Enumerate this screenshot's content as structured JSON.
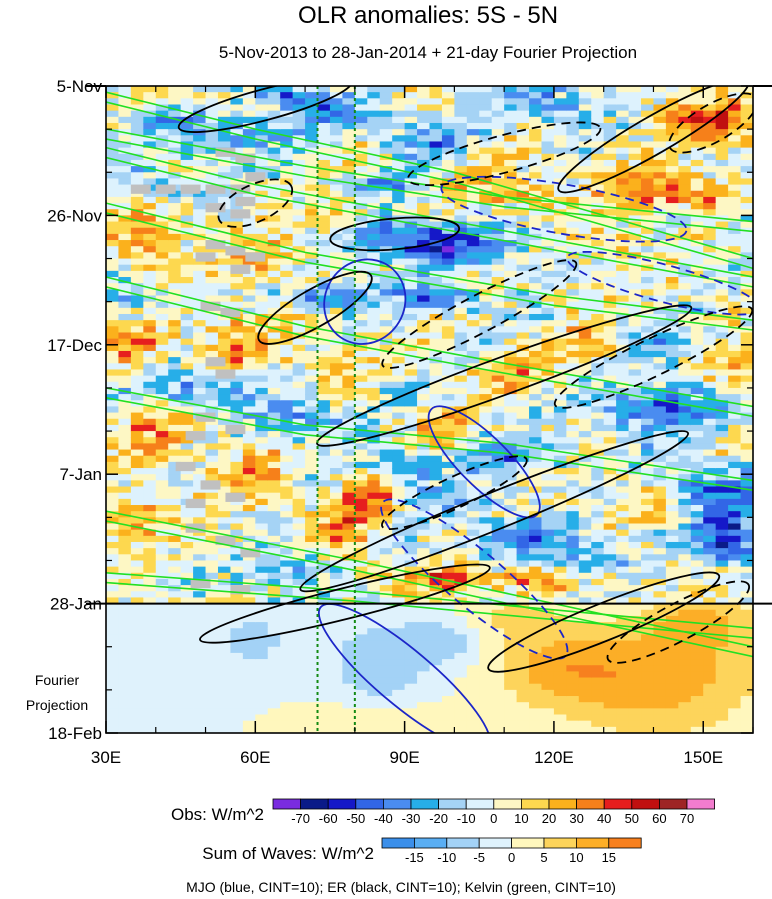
{
  "chart_data": {
    "type": "heatmap",
    "title": "OLR anomalies: 5S - 5N",
    "subtitle": "5-Nov-2013 to 28-Jan-2014 + 21-day Fourier Projection",
    "x_axis": {
      "unit": "longitude (E)",
      "range": [
        30,
        160
      ],
      "ticks": [
        30,
        60,
        90,
        120,
        150
      ],
      "tick_labels": [
        "30E",
        "60E",
        "90E",
        "120E",
        "150E"
      ]
    },
    "y_axis": {
      "unit": "date (time increases downward)",
      "range_days": [
        0,
        105
      ],
      "ticks_days": [
        0,
        21,
        42,
        63,
        84,
        105
      ],
      "tick_labels": [
        "5-Nov",
        "26-Nov",
        "17-Dec",
        "7-Jan",
        "28-Jan",
        "18-Feb"
      ]
    },
    "observation_end_day": 84,
    "projection_label": [
      "Fourier",
      "Projection"
    ],
    "reference_longitudes": [
      72.5,
      80
    ],
    "obs_colorbar": {
      "label": "Obs: W/m^2",
      "levels": [
        -70,
        -60,
        -50,
        -40,
        -30,
        -20,
        -10,
        0,
        10,
        20,
        30,
        40,
        50,
        60,
        70
      ],
      "colors": [
        "#7a2ce0",
        "#0a1a88",
        "#1518c8",
        "#3266e6",
        "#4a8cf0",
        "#27aee8",
        "#a5d3f5",
        "#ddf2fd",
        "#fdf7c4",
        "#fdd84f",
        "#fbb11c",
        "#f6801a",
        "#e61e1e",
        "#c01010",
        "#9e2424",
        "#f27cce"
      ]
    },
    "wave_colorbar": {
      "label": "Sum of Waves: W/m^2",
      "levels": [
        -15,
        -10,
        -5,
        0,
        5,
        10,
        15
      ],
      "colors": [
        "#3b8fea",
        "#5aaef3",
        "#a3d2f6",
        "#dff2fc",
        "#fff7bd",
        "#fdd45b",
        "#fcae27",
        "#f7801f"
      ]
    },
    "contour_legend": "MJO (blue, CINT=10); ER (black, CINT=10); Kelvin (green, CINT=10)",
    "wave_colors": {
      "MJO": "#1c26c8",
      "ER": "#000000",
      "Kelvin": "#22e022"
    },
    "obs_blobs": [
      {
        "lon": 100,
        "day": 26,
        "v": -45,
        "rl": 14,
        "rd": 3
      },
      {
        "lon": 86,
        "day": 24,
        "v": -40,
        "rl": 10,
        "rd": 3
      },
      {
        "lon": 96,
        "day": 34,
        "v": -45,
        "rl": 9,
        "rd": 2
      },
      {
        "lon": 75,
        "day": 34,
        "v": -40,
        "rl": 7,
        "rd": 2
      },
      {
        "lon": 86,
        "day": 16,
        "v": -30,
        "rl": 8,
        "rd": 2
      },
      {
        "lon": 40,
        "day": 16,
        "v": -20,
        "rl": 10,
        "rd": 3
      },
      {
        "lon": 55,
        "day": 8,
        "v": -30,
        "rl": 12,
        "rd": 3
      },
      {
        "lon": 75,
        "day": 4,
        "v": -30,
        "rl": 12,
        "rd": 3
      },
      {
        "lon": 95,
        "day": 9,
        "v": -30,
        "rl": 8,
        "rd": 3
      },
      {
        "lon": 118,
        "day": 3,
        "v": -30,
        "rl": 10,
        "rd": 3
      },
      {
        "lon": 65,
        "day": 1,
        "v": -40,
        "rl": 5,
        "rd": 1.5
      },
      {
        "lon": 42,
        "day": 6,
        "v": -20,
        "rl": 8,
        "rd": 2
      },
      {
        "lon": 48,
        "day": 49,
        "v": -30,
        "rl": 14,
        "rd": 3
      },
      {
        "lon": 70,
        "day": 54,
        "v": -30,
        "rl": 10,
        "rd": 3
      },
      {
        "lon": 88,
        "day": 62,
        "v": -30,
        "rl": 9,
        "rd": 3
      },
      {
        "lon": 112,
        "day": 60,
        "v": -35,
        "rl": 9,
        "rd": 3
      },
      {
        "lon": 112,
        "day": 73,
        "v": -25,
        "rl": 10,
        "rd": 3
      },
      {
        "lon": 140,
        "day": 52,
        "v": -40,
        "rl": 14,
        "rd": 4
      },
      {
        "lon": 152,
        "day": 66,
        "v": -45,
        "rl": 10,
        "rd": 4
      },
      {
        "lon": 155,
        "day": 74,
        "v": -55,
        "rl": 7,
        "rd": 4
      },
      {
        "lon": 140,
        "day": 42,
        "v": -30,
        "rl": 10,
        "rd": 3
      },
      {
        "lon": 125,
        "day": 76,
        "v": -30,
        "rl": 9,
        "rd": 3
      },
      {
        "lon": 66,
        "day": 78,
        "v": -25,
        "rl": 10,
        "rd": 3
      },
      {
        "lon": 100,
        "day": 67,
        "v": -20,
        "rl": 9,
        "rd": 3
      },
      {
        "lon": 130,
        "day": 88,
        "v": -35,
        "rl": 10,
        "rd": 2
      },
      {
        "lon": 155,
        "day": 20,
        "v": -20,
        "rl": 8,
        "rd": 4
      },
      {
        "lon": 36,
        "day": 36,
        "v": -15,
        "rl": 7,
        "rd": 3
      },
      {
        "lon": 88,
        "day": 50,
        "v": -15,
        "rl": 6,
        "rd": 3
      },
      {
        "lon": 152,
        "day": 6,
        "v": 40,
        "rl": 9,
        "rd": 4
      },
      {
        "lon": 140,
        "day": 17,
        "v": 40,
        "rl": 10,
        "rd": 3
      },
      {
        "lon": 152,
        "day": 19,
        "v": 30,
        "rl": 6,
        "rd": 3
      },
      {
        "lon": 100,
        "day": 80,
        "v": 45,
        "rl": 9,
        "rd": 2
      },
      {
        "lon": 116,
        "day": 80,
        "v": 30,
        "rl": 6,
        "rd": 2
      },
      {
        "lon": 38,
        "day": 25,
        "v": 30,
        "rl": 8,
        "rd": 5
      },
      {
        "lon": 36,
        "day": 42,
        "v": 30,
        "rl": 7,
        "rd": 4
      },
      {
        "lon": 56,
        "day": 42,
        "v": 25,
        "rl": 8,
        "rd": 5
      },
      {
        "lon": 40,
        "day": 57,
        "v": 25,
        "rl": 8,
        "rd": 5
      },
      {
        "lon": 36,
        "day": 70,
        "v": 25,
        "rl": 7,
        "rd": 4
      },
      {
        "lon": 60,
        "day": 64,
        "v": 30,
        "rl": 7,
        "rd": 4
      },
      {
        "lon": 84,
        "day": 66,
        "v": 40,
        "rl": 5,
        "rd": 4
      },
      {
        "lon": 78,
        "day": 72,
        "v": 30,
        "rl": 6,
        "rd": 6
      },
      {
        "lon": 62,
        "day": 28,
        "v": 25,
        "rl": 7,
        "rd": 4
      },
      {
        "lon": 77,
        "day": 23,
        "v": 30,
        "rl": 5,
        "rd": 4
      },
      {
        "lon": 110,
        "day": 17,
        "v": 25,
        "rl": 9,
        "rd": 3
      },
      {
        "lon": 112,
        "day": 47,
        "v": 25,
        "rl": 7,
        "rd": 3
      },
      {
        "lon": 128,
        "day": 42,
        "v": 30,
        "rl": 9,
        "rd": 3
      },
      {
        "lon": 155,
        "day": 46,
        "v": 25,
        "rl": 6,
        "rd": 3
      },
      {
        "lon": 130,
        "day": 26,
        "v": 20,
        "rl": 7,
        "rd": 3
      },
      {
        "lon": 143,
        "day": 68,
        "v": 20,
        "rl": 7,
        "rd": 3
      },
      {
        "lon": 97,
        "day": 55,
        "v": 20,
        "rl": 6,
        "rd": 3
      },
      {
        "lon": 75,
        "day": 46,
        "v": 20,
        "rl": 6,
        "rd": 4
      }
    ],
    "proj_blobs": [
      {
        "lon": 140,
        "day": 96,
        "v": 14,
        "rl": 20,
        "rd": 9
      },
      {
        "lon": 120,
        "day": 94,
        "v": 9,
        "rl": 12,
        "rd": 6
      },
      {
        "lon": 85,
        "day": 103,
        "v": 7,
        "rl": 12,
        "rd": 5
      },
      {
        "lon": 150,
        "day": 87,
        "v": 10,
        "rl": 10,
        "rd": 4
      },
      {
        "lon": 110,
        "day": 86,
        "v": 6,
        "rl": 10,
        "rd": 3
      },
      {
        "lon": 85,
        "day": 95,
        "v": -10,
        "rl": 10,
        "rd": 8
      },
      {
        "lon": 98,
        "day": 90,
        "v": -8,
        "rl": 8,
        "rd": 4
      },
      {
        "lon": 60,
        "day": 90,
        "v": -6,
        "rl": 10,
        "rd": 6
      },
      {
        "lon": 40,
        "day": 92,
        "v": -4,
        "rl": 10,
        "rd": 8
      }
    ],
    "missing_cells": [
      [
        35,
        16
      ],
      [
        40,
        16
      ],
      [
        45,
        16
      ],
      [
        50,
        16
      ],
      [
        55,
        16
      ],
      [
        52,
        10
      ],
      [
        56,
        11
      ],
      [
        58,
        14
      ],
      [
        56,
        18
      ],
      [
        50,
        19
      ],
      [
        55,
        20
      ],
      [
        50,
        25
      ],
      [
        54,
        26
      ],
      [
        48,
        27
      ],
      [
        58,
        27
      ],
      [
        55,
        29
      ],
      [
        49,
        35
      ],
      [
        53,
        36
      ],
      [
        50,
        44
      ],
      [
        52,
        46
      ],
      [
        48,
        53
      ],
      [
        54,
        55
      ],
      [
        46,
        56
      ],
      [
        44,
        61
      ],
      [
        49,
        64
      ],
      [
        46,
        67
      ],
      [
        54,
        66
      ],
      [
        46,
        71
      ],
      [
        52,
        73
      ],
      [
        57,
        75
      ],
      [
        47,
        80
      ],
      [
        55,
        81
      ]
    ],
    "kelvin_lines": [
      [
        [
          30,
          1
        ],
        [
          60,
          7
        ],
        [
          100,
          14
        ],
        [
          160,
          28
        ]
      ],
      [
        [
          30,
          7
        ],
        [
          70,
          13
        ],
        [
          110,
          18
        ],
        [
          160,
          22
        ]
      ],
      [
        [
          30,
          10
        ],
        [
          60,
          16
        ],
        [
          100,
          22
        ],
        [
          160,
          31
        ]
      ],
      [
        [
          30,
          19
        ],
        [
          70,
          27
        ],
        [
          120,
          34
        ],
        [
          160,
          38
        ]
      ],
      [
        [
          30,
          31
        ],
        [
          70,
          39
        ],
        [
          110,
          45
        ],
        [
          160,
          52
        ]
      ],
      [
        [
          30,
          49
        ],
        [
          70,
          55
        ],
        [
          110,
          58
        ],
        [
          160,
          64
        ]
      ],
      [
        [
          30,
          69
        ],
        [
          80,
          77
        ],
        [
          120,
          84
        ],
        [
          160,
          91
        ]
      ],
      [
        [
          30,
          79
        ],
        [
          80,
          82
        ],
        [
          120,
          85
        ],
        [
          160,
          88
        ]
      ]
    ],
    "mjo_contours": [
      {
        "lon": 82,
        "day": 35,
        "rl": 8,
        "rd": 7,
        "rot": 30,
        "dash": false
      },
      {
        "lon": 106,
        "day": 61,
        "rl": 15,
        "rd": 4,
        "rot": 45,
        "dash": false
      },
      {
        "lon": 90,
        "day": 96,
        "rl": 22,
        "rd": 4.5,
        "rot": 40,
        "dash": false
      },
      {
        "lon": 122,
        "day": 20,
        "rl": 25,
        "rd": 4,
        "rot": 10,
        "dash": true
      },
      {
        "lon": 104,
        "day": 80,
        "rl": 24,
        "rd": 4.5,
        "rot": 40,
        "dash": true
      },
      {
        "lon": 142,
        "day": 32,
        "rl": 20,
        "rd": 3,
        "rot": 15,
        "dash": true
      }
    ],
    "er_contours": [
      {
        "lon": 62,
        "day": 3,
        "rl": 18,
        "rd": 2.5,
        "rot": -15,
        "dash": false
      },
      {
        "lon": 88,
        "day": 24,
        "rl": 13,
        "rd": 2.5,
        "rot": -5,
        "dash": false
      },
      {
        "lon": 72,
        "day": 36,
        "rl": 13,
        "rd": 3,
        "rot": -30,
        "dash": false
      },
      {
        "lon": 110,
        "day": 47,
        "rl": 40,
        "rd": 3,
        "rot": -20,
        "dash": false
      },
      {
        "lon": 108,
        "day": 69,
        "rl": 42,
        "rd": 3,
        "rot": -22,
        "dash": false
      },
      {
        "lon": 78,
        "day": 84,
        "rl": 30,
        "rd": 2.5,
        "rot": -14,
        "dash": false
      },
      {
        "lon": 140,
        "day": 8,
        "rl": 22,
        "rd": 3,
        "rot": -30,
        "dash": false
      },
      {
        "lon": 130,
        "day": 87,
        "rl": 25,
        "rd": 3,
        "rot": -22,
        "dash": false
      },
      {
        "lon": 60,
        "day": 19,
        "rl": 8,
        "rd": 3,
        "rot": -25,
        "dash": true
      },
      {
        "lon": 105,
        "day": 37,
        "rl": 22,
        "rd": 3,
        "rot": -28,
        "dash": true
      },
      {
        "lon": 140,
        "day": 44,
        "rl": 22,
        "rd": 3,
        "rot": -26,
        "dash": true
      },
      {
        "lon": 110,
        "day": 11,
        "rl": 20,
        "rd": 3,
        "rot": -15,
        "dash": true
      },
      {
        "lon": 100,
        "day": 66,
        "rl": 16,
        "rd": 2.5,
        "rot": -25,
        "dash": true
      },
      {
        "lon": 145,
        "day": 87,
        "rl": 16,
        "rd": 3,
        "rot": -28,
        "dash": true
      },
      {
        "lon": 152,
        "day": 6,
        "rl": 10,
        "rd": 3,
        "rot": -30,
        "dash": true
      }
    ]
  }
}
